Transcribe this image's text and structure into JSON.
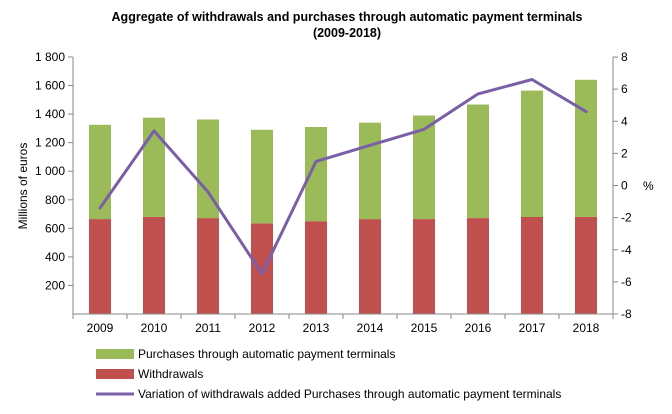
{
  "chart_data": {
    "type": "bar",
    "title": "Aggregate of withdrawals and purchases  through automatic payment terminals",
    "subtitle": "(2009-2018)",
    "ylabel": "Millions of euros",
    "y2label": "%",
    "categories": [
      "2009",
      "2010",
      "2011",
      "2012",
      "2013",
      "2014",
      "2015",
      "2016",
      "2017",
      "2018"
    ],
    "stacked": true,
    "ylim": [
      0,
      1800
    ],
    "yticks": [
      200,
      400,
      600,
      800,
      1000,
      1200,
      1400,
      1600,
      1800
    ],
    "ytick_labels": [
      "200",
      "400",
      "600",
      "800",
      "1 000",
      "1 200",
      "1 400",
      "1 600",
      "1 800"
    ],
    "y2lim": [
      -8,
      8
    ],
    "y2ticks": [
      -8,
      -6,
      -4,
      -2,
      0,
      2,
      4,
      6,
      8
    ],
    "grid": false,
    "legend_position": "bottom",
    "series": [
      {
        "name": "Withdrawals",
        "type": "bar",
        "axis": "left",
        "color": "#c0504d",
        "values": [
          665,
          680,
          672,
          635,
          650,
          665,
          665,
          672,
          680,
          680
        ]
      },
      {
        "name": "Purchases through automatic payment terminals",
        "type": "bar",
        "axis": "left",
        "color": "#9bbb59",
        "values": [
          660,
          695,
          690,
          655,
          660,
          675,
          725,
          795,
          885,
          960
        ]
      },
      {
        "name": "Variation of withdrawals added Purchases through automatic payment terminals",
        "type": "line",
        "axis": "right",
        "color": "#7b5fa6",
        "values": [
          -1.4,
          3.4,
          -0.4,
          -5.5,
          1.5,
          2.5,
          3.5,
          5.7,
          6.6,
          4.6
        ]
      }
    ],
    "legend_order": [
      1,
      0,
      2
    ]
  }
}
